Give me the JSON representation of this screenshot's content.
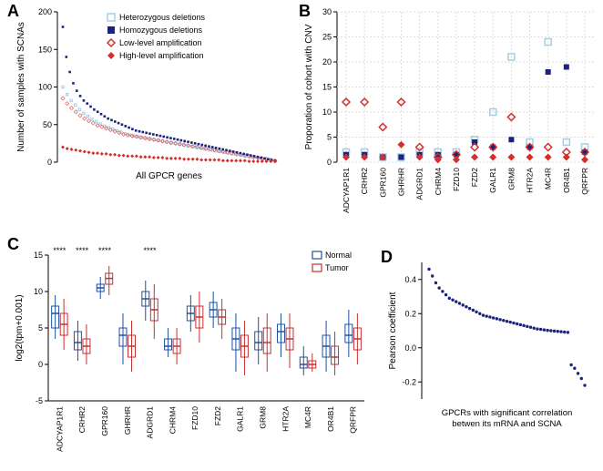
{
  "panelLabels": {
    "A": "A",
    "B": "B",
    "C": "C",
    "D": "D"
  },
  "colors": {
    "hetDel": "#a6cee3",
    "homDel": "#1a237e",
    "lowAmp": "#e57373",
    "lowAmpStroke": "#d32f2f",
    "highAmp": "#d32f2f",
    "navy": "#1a237e",
    "red": "#d32f2f",
    "grey": "#bdbdbd",
    "axis": "#000000",
    "normalBox": "#1e50a2",
    "tumorBox": "#c53030"
  },
  "panelA": {
    "ylabel": "Number of samples with SCNAs",
    "xlabel": "All GPCR genes",
    "ymax": 200,
    "yticks": [
      0,
      50,
      100,
      150,
      200
    ],
    "legend": [
      {
        "label": "Heterozygous deletions",
        "type": "square-open",
        "color": "#a6cee3"
      },
      {
        "label": "Homozygous deletions",
        "type": "square-solid",
        "color": "#1a237e"
      },
      {
        "label": "Low-level amplification",
        "type": "diamond-open",
        "color": "#d32f2f"
      },
      {
        "label": "High-level amplification",
        "type": "diamond-solid",
        "color": "#d32f2f"
      }
    ],
    "series": {
      "homDel": [
        180,
        140,
        120,
        105,
        95,
        88,
        82,
        78,
        74,
        70,
        67,
        64,
        61,
        58,
        56,
        54,
        52,
        50,
        48,
        46,
        44,
        42,
        41,
        40,
        39,
        38,
        37,
        36,
        35,
        34,
        33,
        32,
        31,
        30,
        29,
        28,
        27,
        26,
        25,
        24,
        23,
        22,
        21,
        20,
        19,
        18,
        17,
        16,
        15,
        14,
        13,
        12,
        11,
        10,
        9,
        8,
        7,
        6,
        5,
        4,
        3,
        2
      ],
      "hetDel": [
        100,
        90,
        82,
        76,
        70,
        65,
        61,
        57,
        54,
        51,
        48,
        46,
        44,
        42,
        40,
        38,
        36,
        35,
        34,
        33,
        32,
        31,
        30,
        29,
        28,
        27,
        26,
        25,
        24,
        23,
        22,
        21,
        20,
        19,
        18,
        17,
        16,
        15,
        14,
        13,
        12,
        11,
        10,
        9,
        8,
        7,
        6,
        5,
        4,
        3,
        2,
        1
      ],
      "lowAmp": [
        85,
        78,
        72,
        67,
        62,
        58,
        55,
        52,
        49,
        47,
        45,
        43,
        41,
        39,
        37,
        36,
        35,
        34,
        33,
        32,
        31,
        30,
        29,
        28,
        27,
        26,
        25,
        24,
        23,
        22,
        21,
        20,
        19,
        18,
        17,
        16,
        15,
        14,
        13,
        12,
        11,
        10,
        9,
        8,
        7,
        6,
        5,
        4,
        3,
        2
      ],
      "highAmp": [
        20,
        18,
        17,
        16,
        15,
        14,
        13,
        12,
        12,
        11,
        11,
        10,
        10,
        9,
        9,
        8,
        8,
        8,
        7,
        7,
        7,
        6,
        6,
        6,
        5,
        5,
        5,
        5,
        4,
        4,
        4,
        4,
        3,
        3,
        3,
        3,
        3,
        2,
        2,
        2,
        2,
        2,
        2,
        1,
        1,
        1,
        1,
        1,
        1,
        1
      ]
    }
  },
  "panelB": {
    "ylabel": "Proporation of cohort with CNV",
    "ymax": 30,
    "yticks": [
      0,
      5,
      10,
      15,
      20,
      25,
      30
    ],
    "genes": [
      "ADCYAP1R1",
      "CRHR2",
      "GPR160",
      "GHRHR",
      "ADGRD1",
      "CHRM4",
      "FZD10",
      "FZD2",
      "GALR1",
      "GRM8",
      "HTR2A",
      "MC4R",
      "OR4B1",
      "QRFPR"
    ],
    "points": {
      "hetDel": [
        2,
        2,
        1,
        1,
        2,
        2,
        2,
        4.5,
        10,
        21,
        4,
        24,
        4,
        3
      ],
      "homDel": [
        1.5,
        1.5,
        1,
        1,
        1.5,
        1.5,
        1.5,
        4,
        3,
        4.5,
        3,
        18,
        19,
        2
      ],
      "lowAmp": [
        12,
        12,
        7,
        12,
        3,
        1,
        1.5,
        3,
        3,
        9,
        3,
        3,
        2,
        2
      ],
      "highAmp": [
        1,
        1,
        1,
        3.5,
        1,
        0.5,
        0.5,
        1,
        1,
        1,
        1,
        1,
        1,
        0.5
      ]
    }
  },
  "panelC": {
    "ylabel": "log2(tpm+0.001)",
    "ymax": 15,
    "ymin": -5,
    "yticks": [
      -5,
      0,
      5,
      10,
      15
    ],
    "genes": [
      "ADCYAP1R1",
      "CRHR2",
      "GPR160",
      "GHRHR",
      "ADGRD1",
      "CHRM4",
      "FZD10",
      "FZD2",
      "GALR1",
      "GRM8",
      "HTR2A",
      "MC4R",
      "OR4B1",
      "QRFPR"
    ],
    "sig": [
      "****",
      "****",
      "****",
      "",
      "****",
      "",
      "",
      "",
      "",
      "",
      "",
      "",
      "",
      ""
    ],
    "boxes": {
      "normal": [
        {
          "q1": 5,
          "med": 7,
          "q3": 8,
          "lo": 3.5,
          "hi": 9.5
        },
        {
          "q1": 2,
          "med": 3,
          "q3": 4.5,
          "lo": 0.5,
          "hi": 6
        },
        {
          "q1": 10,
          "med": 10.5,
          "q3": 11,
          "lo": 9,
          "hi": 12
        },
        {
          "q1": 2.5,
          "med": 4,
          "q3": 5,
          "lo": 0,
          "hi": 7
        },
        {
          "q1": 8,
          "med": 9,
          "q3": 10,
          "lo": 6,
          "hi": 11.5
        },
        {
          "q1": 2,
          "med": 2.5,
          "q3": 3.5,
          "lo": 1,
          "hi": 5
        },
        {
          "q1": 6,
          "med": 7,
          "q3": 8,
          "lo": 4.5,
          "hi": 9.5
        },
        {
          "q1": 6.5,
          "med": 7.5,
          "q3": 8.5,
          "lo": 5,
          "hi": 10
        },
        {
          "q1": 2,
          "med": 3.5,
          "q3": 5,
          "lo": -1,
          "hi": 7
        },
        {
          "q1": 2,
          "med": 3,
          "q3": 4.5,
          "lo": 0,
          "hi": 6.5
        },
        {
          "q1": 3,
          "med": 4.5,
          "q3": 5.5,
          "lo": 1,
          "hi": 7
        },
        {
          "q1": -0.5,
          "med": 0,
          "q3": 1,
          "lo": -1.5,
          "hi": 2.5
        },
        {
          "q1": 1,
          "med": 2.5,
          "q3": 4,
          "lo": -1,
          "hi": 6
        },
        {
          "q1": 3,
          "med": 4,
          "q3": 5.5,
          "lo": 1,
          "hi": 7.5
        }
      ],
      "tumor": [
        {
          "q1": 4,
          "med": 5.5,
          "q3": 7,
          "lo": 2,
          "hi": 9
        },
        {
          "q1": 1.5,
          "med": 2.5,
          "q3": 3.5,
          "lo": 0,
          "hi": 5.5
        },
        {
          "q1": 11,
          "med": 11.8,
          "q3": 12.5,
          "lo": 9.5,
          "hi": 13.5
        },
        {
          "q1": 1,
          "med": 2.5,
          "q3": 4,
          "lo": -1,
          "hi": 6
        },
        {
          "q1": 6,
          "med": 7.5,
          "q3": 9,
          "lo": 3.5,
          "hi": 11
        },
        {
          "q1": 1.5,
          "med": 2.5,
          "q3": 3.5,
          "lo": 0,
          "hi": 5
        },
        {
          "q1": 5,
          "med": 6.5,
          "q3": 8,
          "lo": 3,
          "hi": 10
        },
        {
          "q1": 5.5,
          "med": 6.5,
          "q3": 7.5,
          "lo": 3.5,
          "hi": 9
        },
        {
          "q1": 1,
          "med": 2.5,
          "q3": 4,
          "lo": -1.5,
          "hi": 6
        },
        {
          "q1": 1.5,
          "med": 3,
          "q3": 5,
          "lo": -1,
          "hi": 7
        },
        {
          "q1": 2,
          "med": 3.5,
          "q3": 5,
          "lo": -0.5,
          "hi": 7
        },
        {
          "q1": -0.5,
          "med": 0,
          "q3": 0.5,
          "lo": -1,
          "hi": 1.5
        },
        {
          "q1": 0,
          "med": 1,
          "q3": 2.5,
          "lo": -1.5,
          "hi": 4.5
        },
        {
          "q1": 2,
          "med": 3.5,
          "q3": 5,
          "lo": 0,
          "hi": 7
        }
      ]
    },
    "legend": [
      {
        "label": "Normal",
        "color": "#1e50a2"
      },
      {
        "label": "Tumor",
        "color": "#c53030"
      }
    ]
  },
  "panelD": {
    "ylabel": "Pearson coefficient",
    "xlabel": "GPCRs with significant correlation\nbetwen its mRNA and SCNA",
    "yticks": [
      -0.2,
      0.0,
      0.2,
      0.4
    ],
    "ymin": -0.3,
    "ymax": 0.5,
    "values": [
      0.46,
      0.42,
      0.38,
      0.35,
      0.33,
      0.31,
      0.29,
      0.28,
      0.27,
      0.26,
      0.25,
      0.24,
      0.23,
      0.22,
      0.21,
      0.2,
      0.19,
      0.185,
      0.18,
      0.175,
      0.17,
      0.165,
      0.16,
      0.155,
      0.15,
      0.145,
      0.14,
      0.135,
      0.13,
      0.125,
      0.12,
      0.115,
      0.11,
      0.108,
      0.105,
      0.102,
      0.1,
      0.098,
      0.096,
      0.094,
      0.092,
      0.09,
      -0.1,
      -0.12,
      -0.15,
      -0.18,
      -0.22
    ]
  }
}
